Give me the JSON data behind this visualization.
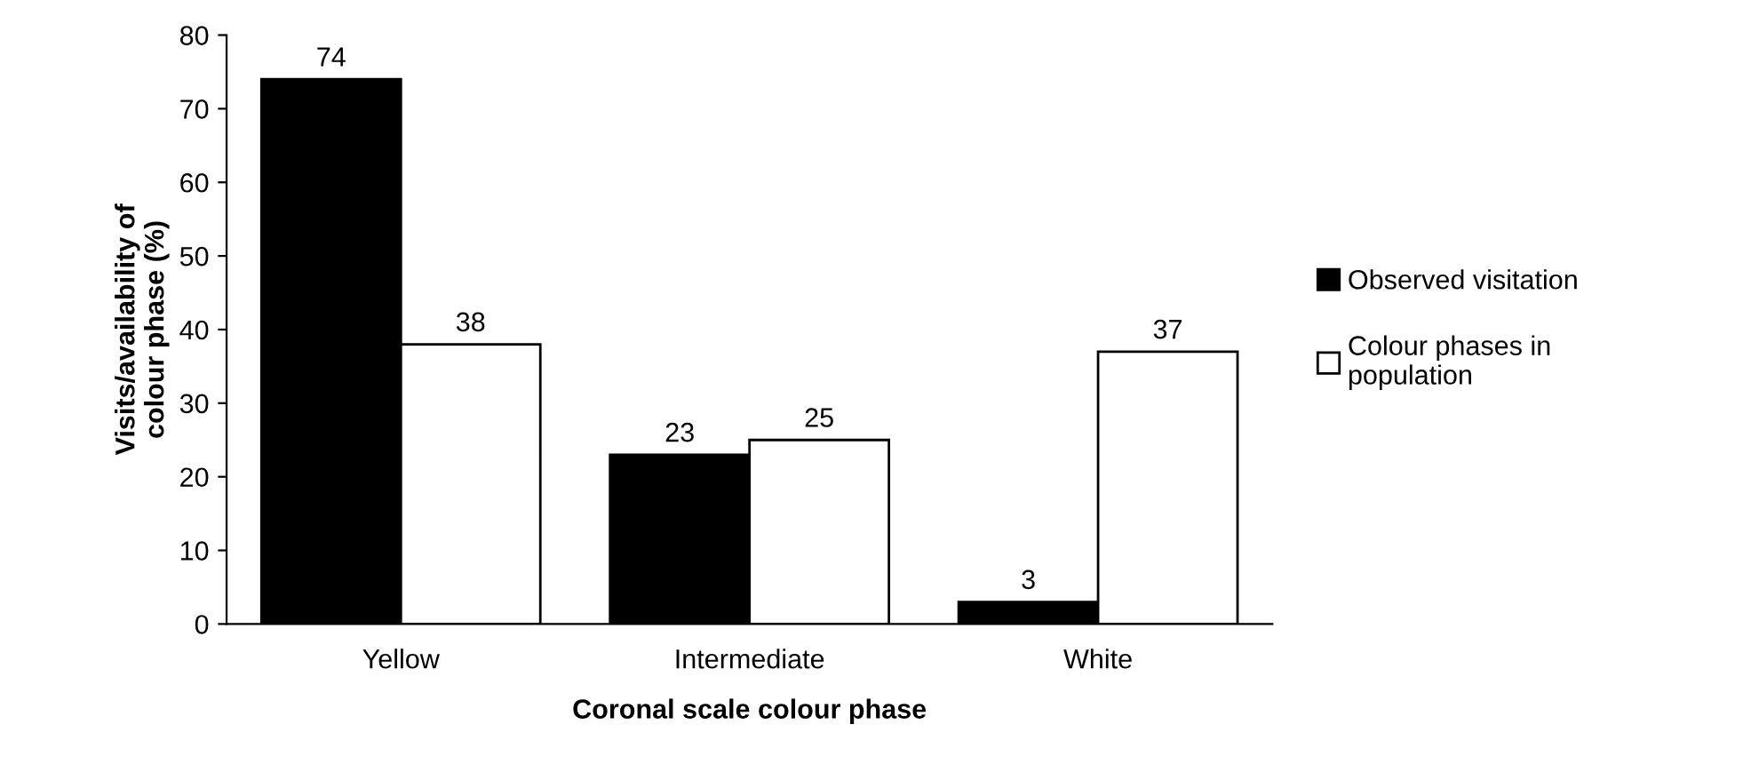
{
  "chart_data": {
    "type": "bar",
    "xlabel": "Coronal scale colour phase",
    "ylabel": "Visits/availability of colour phase (%)",
    "categories": [
      "Yellow",
      "Intermediate",
      "White"
    ],
    "series": [
      {
        "name": "Observed visitation",
        "color": "#000000",
        "values": [
          74,
          23,
          3
        ]
      },
      {
        "name": "Colour phases in population",
        "color": "#ffffff",
        "values": [
          38,
          25,
          37
        ]
      }
    ],
    "ylim": [
      0,
      80
    ],
    "yticks": [
      0,
      10,
      20,
      30,
      40,
      50,
      60,
      70,
      80
    ],
    "grid": false,
    "legend": "right",
    "data_labels": true
  }
}
